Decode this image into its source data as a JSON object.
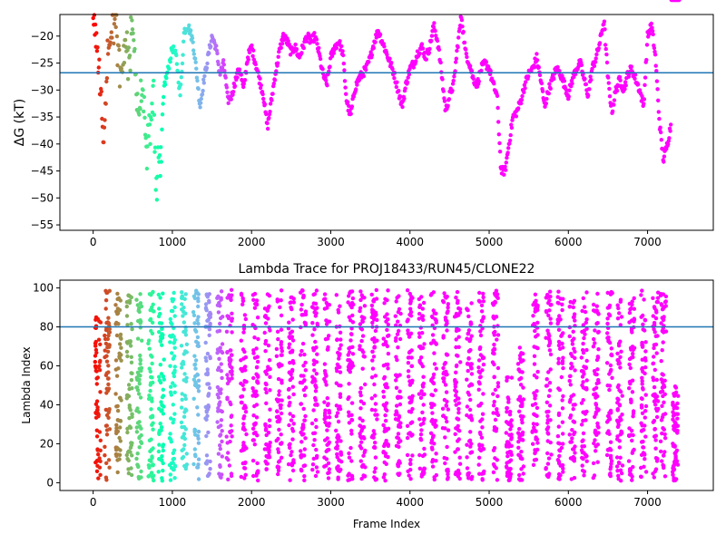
{
  "chart_data": [
    {
      "type": "scatter",
      "title": "",
      "xlabel": "",
      "ylabel": "ΔG (kT)",
      "xlim": [
        -420,
        7830
      ],
      "ylim": [
        -56,
        -16
      ],
      "xticks": [
        0,
        1000,
        2000,
        3000,
        4000,
        5000,
        6000,
        7000
      ],
      "yticks": [
        -55,
        -50,
        -45,
        -40,
        -35,
        -30,
        -25,
        -20
      ],
      "hline": -26.8,
      "hline_color": "#1f77b4",
      "colormap": "rainbow",
      "color_note": "color = sample position along the trajectory (red early -> purple late)",
      "trace_x": [
        0,
        40,
        80,
        130,
        180,
        230,
        280,
        320,
        360,
        400,
        450,
        500,
        560,
        620,
        680,
        720,
        760,
        800,
        850,
        900,
        950,
        1000,
        1050,
        1100,
        1150,
        1200,
        1260,
        1300,
        1350,
        1400,
        1450,
        1500,
        1550,
        1600,
        1650,
        1700,
        1750,
        1800,
        1850,
        1900,
        1950,
        2000,
        2050,
        2100,
        2150,
        2200,
        2250,
        2300,
        2350,
        2400,
        2450,
        2500,
        2550,
        2600,
        2650,
        2700,
        2750,
        2800,
        2850,
        2900,
        2950,
        3000,
        3050,
        3100,
        3150,
        3200,
        3250,
        3300,
        3350,
        3400,
        3450,
        3500,
        3550,
        3600,
        3650,
        3700,
        3750,
        3800,
        3850,
        3900,
        3950,
        4000,
        4050,
        4100,
        4150,
        4200,
        4250,
        4300,
        4350,
        4400,
        4450,
        4500,
        4550,
        4600,
        4650,
        4700,
        4750,
        4800,
        4850,
        4900,
        4950,
        5000,
        5050,
        5100,
        5150,
        5200,
        5250,
        5300,
        5350,
        5400,
        5450,
        5500,
        5550,
        5600,
        5650,
        5700,
        5750,
        5800,
        5850,
        5900,
        5950,
        6000,
        6050,
        6100,
        6150,
        6200,
        6250,
        6300,
        6350,
        6400,
        6450,
        6500,
        6550,
        6600,
        6650,
        6700,
        6750,
        6800,
        6850,
        6900,
        6950,
        7000,
        7050,
        7100,
        7150,
        7200,
        7250,
        7300,
        7350,
        7400
      ],
      "trace_y": [
        -18,
        -22,
        -28,
        -40,
        -24,
        -20,
        -17,
        -22,
        -28,
        -21,
        -25,
        -18,
        -35,
        -31,
        -42,
        -36,
        -30,
        -48,
        -41,
        -29,
        -26,
        -22,
        -24,
        -31,
        -19,
        -18,
        -21,
        -26,
        -33,
        -28,
        -24,
        -20,
        -22,
        -27,
        -25,
        -32,
        -31,
        -28,
        -26,
        -30,
        -24,
        -22,
        -25,
        -28,
        -31,
        -37,
        -32,
        -27,
        -23,
        -20,
        -21,
        -23,
        -22,
        -24,
        -22,
        -20,
        -21,
        -20,
        -23,
        -27,
        -29,
        -24,
        -22,
        -21,
        -23,
        -32,
        -35,
        -30,
        -28,
        -27,
        -26,
        -24,
        -21,
        -19,
        -21,
        -23,
        -25,
        -27,
        -30,
        -33,
        -29,
        -26,
        -25,
        -23,
        -22,
        -24,
        -22,
        -18,
        -21,
        -27,
        -34,
        -31,
        -29,
        -22,
        -16,
        -23,
        -25,
        -28,
        -29,
        -26,
        -25,
        -26,
        -29,
        -31,
        -45,
        -45,
        -40,
        -35,
        -34,
        -32,
        -29,
        -27,
        -26,
        -24,
        -28,
        -33,
        -30,
        -28,
        -26,
        -27,
        -29,
        -31,
        -28,
        -26,
        -25,
        -28,
        -31,
        -26,
        -24,
        -21,
        -17,
        -28,
        -34,
        -30,
        -28,
        -30,
        -27,
        -26,
        -28,
        -30,
        -33,
        -20,
        -18,
        -24,
        -36,
        -43,
        -40,
        -36
      ]
    },
    {
      "type": "scatter",
      "title": "Lambda Trace for PROJ18433/RUN45/CLONE22",
      "xlabel": "Frame Index",
      "ylabel": "Lambda Index",
      "xlim": [
        -420,
        7830
      ],
      "ylim": [
        -4,
        104
      ],
      "xticks": [
        0,
        1000,
        2000,
        3000,
        4000,
        5000,
        6000,
        7000
      ],
      "yticks": [
        0,
        20,
        40,
        60,
        80,
        100
      ],
      "hline": 80,
      "hline_color": "#1f77b4",
      "colormap": "rainbow",
      "color_note": "color = sample position along the trajectory (red early -> purple late)",
      "cycle_centers": [
        60,
        180,
        320,
        460,
        580,
        730,
        860,
        1000,
        1150,
        1300,
        1450,
        1600,
        1720,
        1900,
        2050,
        2200,
        2350,
        2500,
        2650,
        2800,
        2950,
        3100,
        3250,
        3400,
        3550,
        3700,
        3850,
        4000,
        4150,
        4300,
        4450,
        4600,
        4750,
        4900,
        5080,
        5250,
        5400,
        5580,
        5750,
        5900,
        6050,
        6200,
        6350,
        6520,
        6650,
        6800,
        6950,
        7100,
        7200,
        7350
      ],
      "cycle_peaks": [
        85,
        99,
        99,
        99,
        99,
        99,
        99,
        99,
        99,
        99,
        99,
        99,
        99,
        99,
        99,
        99,
        99,
        99,
        99,
        99,
        99,
        99,
        99,
        99,
        99,
        99,
        99,
        99,
        99,
        99,
        99,
        99,
        99,
        99,
        99,
        55,
        70,
        99,
        99,
        99,
        99,
        99,
        99,
        99,
        99,
        99,
        99,
        99,
        99,
        50
      ]
    }
  ]
}
